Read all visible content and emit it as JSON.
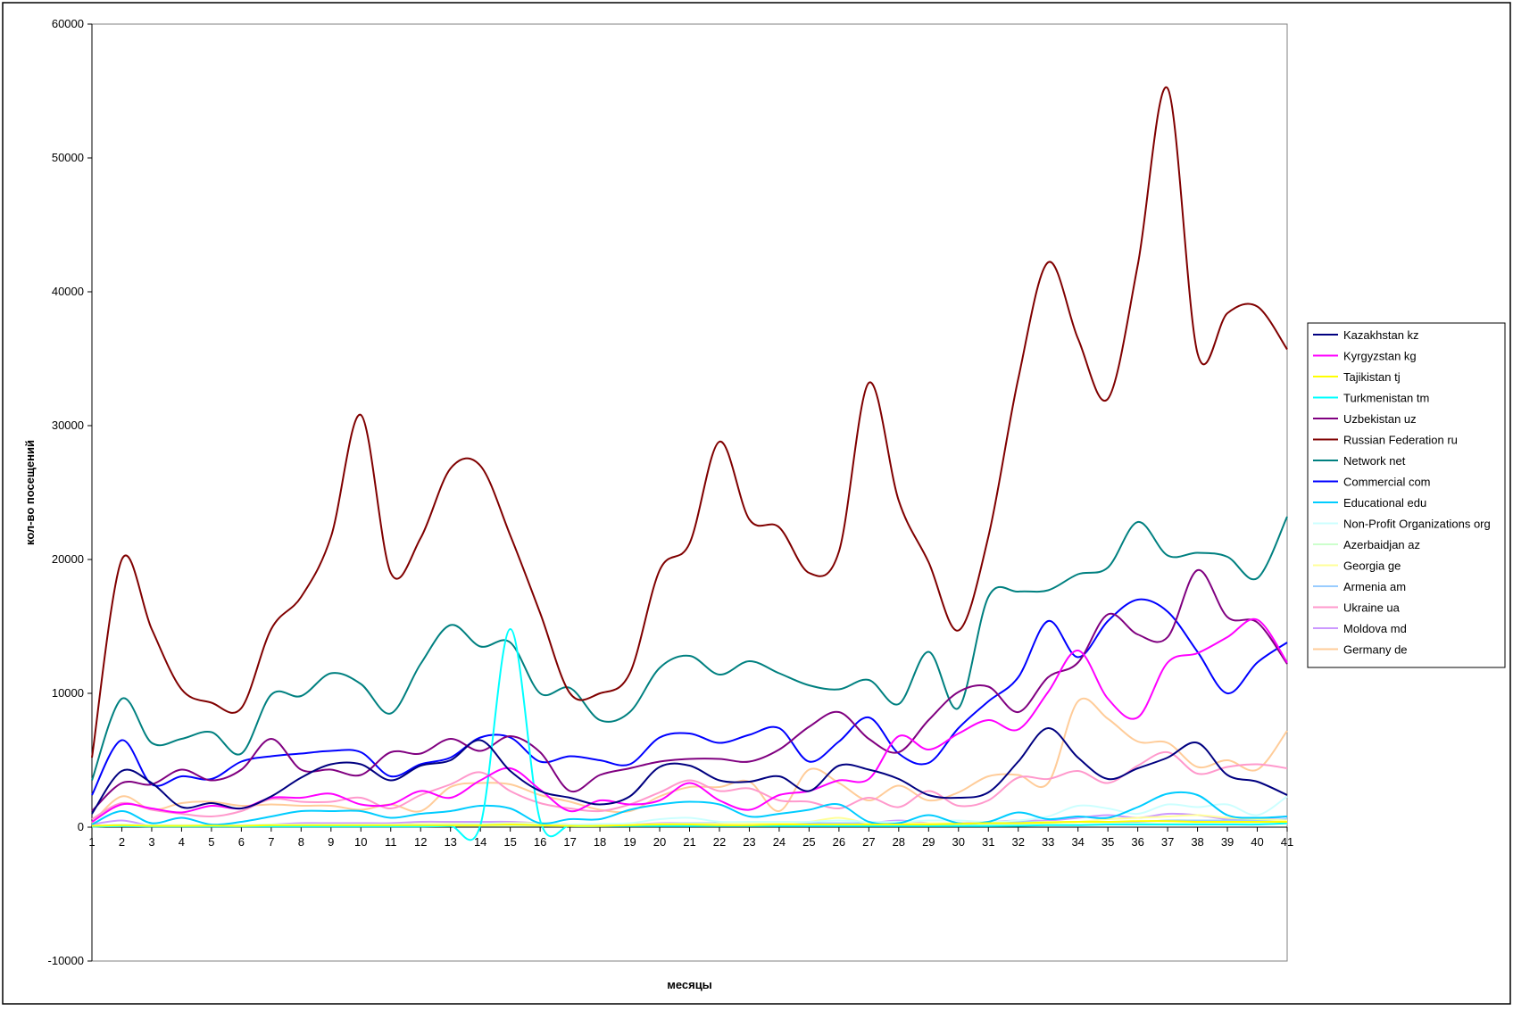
{
  "chart_data": {
    "type": "line",
    "title": "",
    "xlabel": "месяцы",
    "ylabel": "кол-во посещений",
    "ylim": [
      -10000,
      60000
    ],
    "y_ticks": [
      -10000,
      0,
      10000,
      20000,
      30000,
      40000,
      50000,
      60000
    ],
    "x": [
      1,
      2,
      3,
      4,
      5,
      6,
      7,
      8,
      9,
      10,
      11,
      12,
      13,
      14,
      15,
      16,
      17,
      18,
      19,
      20,
      21,
      22,
      23,
      24,
      25,
      26,
      27,
      28,
      29,
      30,
      31,
      32,
      33,
      34,
      35,
      36,
      37,
      38,
      39,
      40,
      41
    ],
    "x_ticks": [
      "1",
      "2",
      "3",
      "4",
      "5",
      "6",
      "7",
      "8",
      "9",
      "10",
      "11",
      "12",
      "13",
      "14",
      "15",
      "16",
      "17",
      "18",
      "19",
      "20",
      "21",
      "22",
      "23",
      "24",
      "25",
      "26",
      "27",
      "28",
      "29",
      "30",
      "31",
      "32",
      "33",
      "34",
      "35",
      "36",
      "37",
      "38",
      "39",
      "40",
      "41"
    ],
    "grid": false,
    "legend_position": "right",
    "series": [
      {
        "name": "Kazakhstan kz",
        "color": "#000080",
        "values": [
          1000,
          4200,
          3300,
          1500,
          1800,
          1400,
          2300,
          3700,
          4700,
          4700,
          3500,
          4600,
          5000,
          6500,
          4200,
          2700,
          2200,
          1700,
          2300,
          4500,
          4600,
          3500,
          3400,
          3800,
          2700,
          4600,
          4300,
          3600,
          2400,
          2200,
          2600,
          4900,
          7400,
          5200,
          3600,
          4400,
          5200,
          6300,
          3900,
          3400,
          2400
        ]
      },
      {
        "name": "Kyrgyzstan kg",
        "color": "#FF00FF",
        "values": [
          400,
          1700,
          1400,
          1100,
          1600,
          1400,
          2200,
          2200,
          2500,
          1700,
          1700,
          2700,
          2200,
          3500,
          4400,
          2800,
          1200,
          2000,
          1700,
          2000,
          3300,
          2000,
          1300,
          2400,
          2700,
          3500,
          3600,
          6800,
          5800,
          7000,
          8000,
          7300,
          10100,
          13200,
          9600,
          8200,
          12300,
          13000,
          14200,
          15500,
          12300
        ]
      },
      {
        "name": "Tajikistan tj",
        "color": "#FFFF00",
        "values": [
          100,
          150,
          100,
          100,
          120,
          100,
          150,
          150,
          150,
          150,
          150,
          150,
          150,
          150,
          200,
          150,
          100,
          100,
          150,
          200,
          200,
          150,
          150,
          200,
          200,
          200,
          200,
          200,
          200,
          250,
          300,
          300,
          350,
          400,
          400,
          450,
          450,
          400,
          400,
          400,
          400
        ]
      },
      {
        "name": "Turkmenistan tm",
        "color": "#00FFFF",
        "values": [
          50,
          80,
          50,
          50,
          50,
          50,
          50,
          50,
          50,
          50,
          50,
          50,
          80,
          150,
          14800,
          500,
          100,
          80,
          80,
          80,
          80,
          80,
          80,
          80,
          80,
          80,
          80,
          80,
          80,
          80,
          80,
          100,
          150,
          150,
          200,
          200,
          200,
          200,
          200,
          200,
          300
        ]
      },
      {
        "name": "Uzbekistan uz",
        "color": "#800080",
        "values": [
          1200,
          3300,
          3200,
          4300,
          3500,
          4300,
          6600,
          4300,
          4300,
          3900,
          5600,
          5500,
          6600,
          5700,
          6800,
          5600,
          2700,
          3900,
          4400,
          4900,
          5100,
          5100,
          4900,
          5800,
          7500,
          8600,
          6600,
          5600,
          8000,
          10100,
          10500,
          8600,
          11200,
          12300,
          15900,
          14400,
          14200,
          19200,
          15700,
          15300,
          12200
        ]
      },
      {
        "name": "Russian Federation ru",
        "color": "#800000",
        "values": [
          5200,
          20000,
          14800,
          10300,
          9300,
          8900,
          14800,
          17200,
          21700,
          30800,
          19000,
          21600,
          26800,
          27000,
          21800,
          16000,
          10000,
          10000,
          11500,
          19200,
          21200,
          28800,
          23000,
          22400,
          19000,
          20600,
          33200,
          24400,
          19800,
          14700,
          21700,
          33500,
          42200,
          36500,
          32000,
          42000,
          55200,
          35400,
          38400,
          38900,
          35700
        ]
      },
      {
        "name": "Network net",
        "color": "#008080",
        "values": [
          3500,
          9600,
          6300,
          6600,
          7100,
          5500,
          9900,
          9800,
          11500,
          10700,
          8500,
          12200,
          15100,
          13500,
          13800,
          10000,
          10400,
          8000,
          8600,
          11900,
          12800,
          11400,
          12400,
          11500,
          10600,
          10300,
          11000,
          9200,
          13100,
          8900,
          17200,
          17600,
          17700,
          18900,
          19400,
          22800,
          20300,
          20500,
          20200,
          18600,
          23200
        ]
      },
      {
        "name": "Commercial com",
        "color": "#0000FF",
        "values": [
          2400,
          6500,
          3200,
          3800,
          3600,
          4900,
          5300,
          5500,
          5700,
          5600,
          3800,
          4700,
          5200,
          6700,
          6700,
          4900,
          5300,
          5000,
          4700,
          6700,
          7000,
          6300,
          6900,
          7400,
          4900,
          6400,
          8200,
          5500,
          4800,
          7400,
          9400,
          11200,
          15400,
          12700,
          15400,
          17000,
          16100,
          13100,
          10000,
          12300,
          13800
        ]
      },
      {
        "name": "Educational edu",
        "color": "#00CCFF",
        "values": [
          200,
          1200,
          300,
          700,
          200,
          400,
          800,
          1200,
          1200,
          1200,
          700,
          1000,
          1200,
          1600,
          1400,
          300,
          600,
          600,
          1300,
          1700,
          1900,
          1700,
          800,
          1000,
          1300,
          1700,
          400,
          300,
          900,
          300,
          400,
          1100,
          600,
          800,
          700,
          1500,
          2500,
          2400,
          900,
          700,
          800
        ]
      },
      {
        "name": "Non-Profit Organizations org",
        "color": "#CCFFFF",
        "values": [
          100,
          200,
          150,
          150,
          150,
          150,
          200,
          200,
          200,
          200,
          200,
          200,
          200,
          250,
          250,
          250,
          200,
          250,
          300,
          600,
          700,
          400,
          400,
          400,
          400,
          500,
          400,
          400,
          500,
          500,
          400,
          500,
          800,
          1600,
          1400,
          1000,
          1700,
          1500,
          1700,
          900,
          2300
        ]
      },
      {
        "name": "Azerbaidjan az",
        "color": "#CCFFCC",
        "values": [
          50,
          80,
          80,
          80,
          80,
          80,
          80,
          80,
          80,
          80,
          80,
          80,
          100,
          100,
          100,
          100,
          80,
          80,
          100,
          100,
          100,
          100,
          100,
          150,
          150,
          150,
          150,
          150,
          150,
          150,
          200,
          200,
          200,
          200,
          250,
          250,
          250,
          250,
          250,
          250,
          250
        ]
      },
      {
        "name": "Georgia ge",
        "color": "#FFFF99",
        "values": [
          100,
          200,
          150,
          150,
          150,
          150,
          200,
          200,
          200,
          200,
          200,
          250,
          250,
          250,
          300,
          300,
          200,
          200,
          200,
          250,
          250,
          250,
          300,
          300,
          400,
          700,
          300,
          300,
          300,
          300,
          300,
          300,
          400,
          400,
          600,
          700,
          800,
          900,
          700,
          600,
          500
        ]
      },
      {
        "name": "Armenia am",
        "color": "#99CCFF",
        "values": [
          50,
          100,
          100,
          100,
          100,
          100,
          150,
          150,
          200,
          200,
          200,
          200,
          250,
          250,
          300,
          300,
          200,
          200,
          200,
          250,
          300,
          300,
          300,
          300,
          300,
          300,
          300,
          300,
          300,
          300,
          300,
          400,
          400,
          400,
          400,
          400,
          500,
          500,
          500,
          500,
          600
        ]
      },
      {
        "name": "Ukraine ua",
        "color": "#FF99CC",
        "values": [
          600,
          1800,
          1300,
          1000,
          800,
          1200,
          2100,
          1900,
          1900,
          2200,
          1400,
          2400,
          3200,
          4100,
          2700,
          1800,
          1400,
          1200,
          1700,
          2600,
          3500,
          2700,
          2900,
          2000,
          1900,
          1400,
          2200,
          1500,
          2700,
          1600,
          2000,
          3700,
          3600,
          4200,
          3300,
          4600,
          5600,
          4000,
          4500,
          4700,
          4400
        ]
      },
      {
        "name": "Moldova md",
        "color": "#CC99FF",
        "values": [
          200,
          500,
          100,
          100,
          150,
          150,
          200,
          300,
          300,
          300,
          300,
          400,
          400,
          400,
          400,
          300,
          200,
          200,
          200,
          300,
          300,
          300,
          300,
          300,
          300,
          300,
          300,
          500,
          300,
          300,
          400,
          500,
          500,
          700,
          900,
          700,
          1000,
          900,
          600,
          600,
          800
        ]
      },
      {
        "name": "Germany de",
        "color": "#FFCC99",
        "values": [
          300,
          2300,
          1300,
          1800,
          1900,
          1600,
          1700,
          1600,
          1600,
          1300,
          1700,
          1200,
          3000,
          3300,
          3200,
          2400,
          1900,
          1300,
          1200,
          2300,
          3000,
          3000,
          3400,
          1200,
          4300,
          3300,
          2000,
          3100,
          2000,
          2600,
          3800,
          3900,
          3300,
          9400,
          8100,
          6400,
          6300,
          4500,
          5000,
          4300,
          7200
        ]
      }
    ]
  }
}
